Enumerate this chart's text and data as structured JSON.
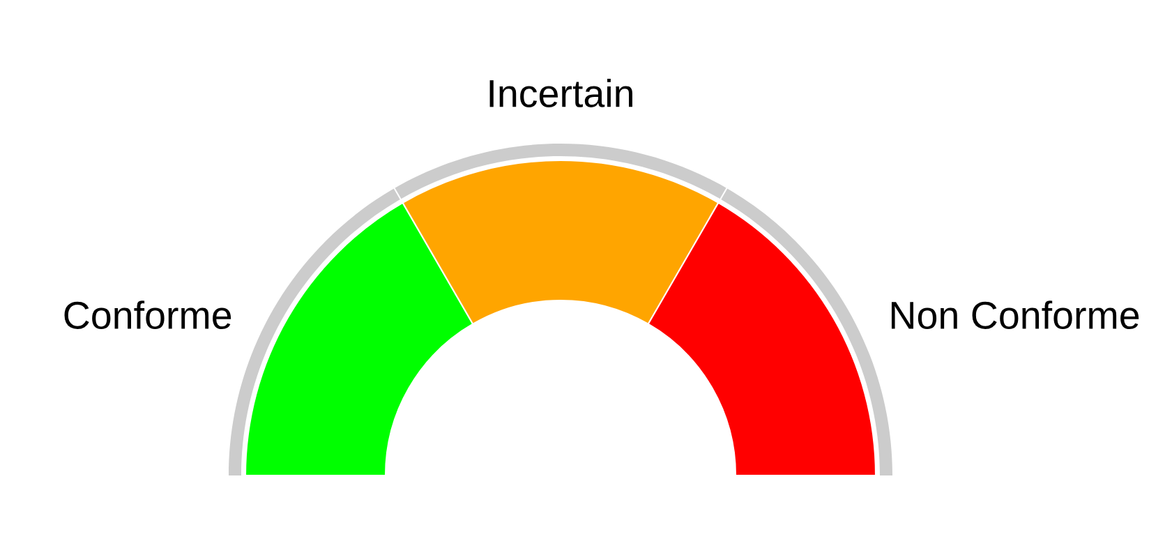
{
  "chart_data": {
    "type": "donut",
    "categories": [
      "Conforme",
      "Incertain",
      "Non Conforme"
    ],
    "values": [
      33.3,
      33.4,
      33.3
    ],
    "colors": [
      "#00ff00",
      "#ffa500",
      "#ff0000"
    ]
  }
}
